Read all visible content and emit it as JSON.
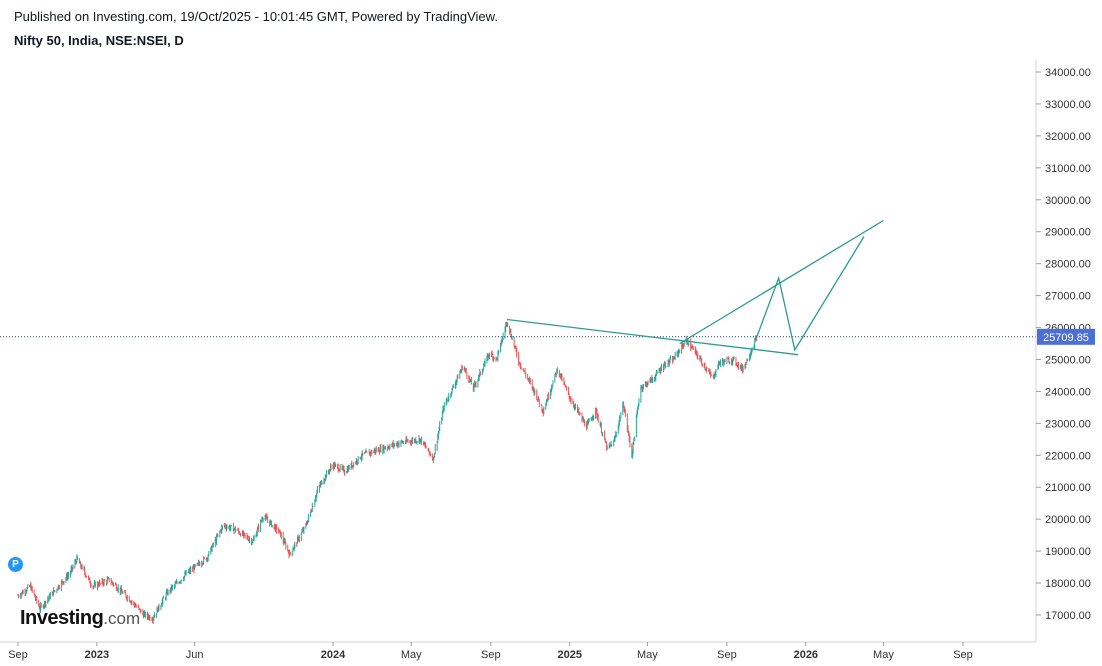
{
  "header": {
    "published": "Published on Investing.com, 19/Oct/2025 - 10:01:45 GMT, Powered by TradingView.",
    "symbol": "Nifty 50, India, NSE:NSEI, D"
  },
  "logo": {
    "bold": "Investing",
    "suffix": ".com"
  },
  "badge": {
    "label": "P",
    "color": "#2196f3"
  },
  "colors": {
    "up": "#26a69a",
    "down": "#ef5350",
    "trendline": "#2a9d8f",
    "price_tag": "#4a6fd6",
    "dotted": "#1f3d7a"
  },
  "chart_data": {
    "type": "candlestick",
    "title": "Nifty 50, India, NSE:NSEI, D",
    "x_ticks": [
      "Sep",
      "2023",
      "Jun",
      "2024",
      "May",
      "Sep",
      "2025",
      "May",
      "Sep",
      "2026",
      "May",
      "Sep"
    ],
    "y_ticks": [
      "17000.00",
      "18000.00",
      "19000.00",
      "20000.00",
      "21000.00",
      "22000.00",
      "23000.00",
      "24000.00",
      "25000.00",
      "26000.00",
      "27000.00",
      "28000.00",
      "29000.00",
      "30000.00",
      "31000.00",
      "32000.00",
      "33000.00",
      "34000.00"
    ],
    "ylim": [
      16400,
      34600
    ],
    "last_price": {
      "value": 25709.85,
      "label": "25709.85"
    },
    "price_path": [
      [
        "2022-09-01",
        17600
      ],
      [
        "2022-09-20",
        17900
      ],
      [
        "2022-10-05",
        17200
      ],
      [
        "2022-10-25",
        17700
      ],
      [
        "2022-11-20",
        18300
      ],
      [
        "2022-12-01",
        18750
      ],
      [
        "2022-12-25",
        17900
      ],
      [
        "2023-01-20",
        18100
      ],
      [
        "2023-02-20",
        17500
      ],
      [
        "2023-03-15",
        17000
      ],
      [
        "2023-03-28",
        16900
      ],
      [
        "2023-04-20",
        17700
      ],
      [
        "2023-05-20",
        18300
      ],
      [
        "2023-06-20",
        18800
      ],
      [
        "2023-07-15",
        19800
      ],
      [
        "2023-08-01",
        19700
      ],
      [
        "2023-08-30",
        19300
      ],
      [
        "2023-09-15",
        20100
      ],
      [
        "2023-10-10",
        19600
      ],
      [
        "2023-10-26",
        18900
      ],
      [
        "2023-11-20",
        19800
      ],
      [
        "2023-12-10",
        21000
      ],
      [
        "2023-12-31",
        21700
      ],
      [
        "2024-01-20",
        21500
      ],
      [
        "2024-02-15",
        22000
      ],
      [
        "2024-03-15",
        22200
      ],
      [
        "2024-04-15",
        22400
      ],
      [
        "2024-05-15",
        22500
      ],
      [
        "2024-06-04",
        21900
      ],
      [
        "2024-06-20",
        23500
      ],
      [
        "2024-07-20",
        24800
      ],
      [
        "2024-08-05",
        24100
      ],
      [
        "2024-08-30",
        25200
      ],
      [
        "2024-09-10",
        25000
      ],
      [
        "2024-09-26",
        26200
      ],
      [
        "2024-10-15",
        24900
      ],
      [
        "2024-11-05",
        24100
      ],
      [
        "2024-11-21",
        23400
      ],
      [
        "2024-12-13",
        24700
      ],
      [
        "2025-01-01",
        23800
      ],
      [
        "2025-01-27",
        22900
      ],
      [
        "2025-02-10",
        23400
      ],
      [
        "2025-02-28",
        22200
      ],
      [
        "2025-03-10",
        22400
      ],
      [
        "2025-03-25",
        23600
      ],
      [
        "2025-04-07",
        22000
      ],
      [
        "2025-04-20",
        24100
      ],
      [
        "2025-05-10",
        24400
      ],
      [
        "2025-05-25",
        24800
      ],
      [
        "2025-06-10",
        25000
      ],
      [
        "2025-06-30",
        25600
      ],
      [
        "2025-07-15",
        25200
      ],
      [
        "2025-08-10",
        24400
      ],
      [
        "2025-08-20",
        24900
      ],
      [
        "2025-09-10",
        25000
      ],
      [
        "2025-09-25",
        24700
      ],
      [
        "2025-10-05",
        25100
      ],
      [
        "2025-10-17",
        25700
      ]
    ],
    "drawings": {
      "resistance_line": [
        [
          "2024-09-26",
          26250
        ],
        [
          "2025-12-20",
          25150
        ]
      ],
      "rising_line": [
        [
          "2025-06-20",
          25500
        ],
        [
          "2026-05-01",
          29350
        ]
      ],
      "projection_path": [
        [
          "2025-10-17",
          25700
        ],
        [
          "2025-11-20",
          27550
        ],
        [
          "2025-12-15",
          25300
        ],
        [
          "2026-04-01",
          28850
        ]
      ]
    }
  }
}
